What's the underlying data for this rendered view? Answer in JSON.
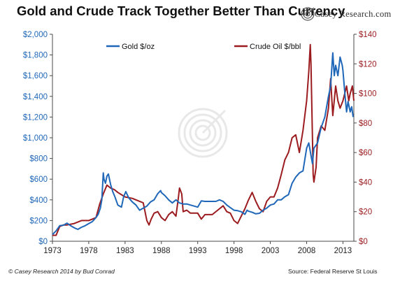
{
  "header": {
    "title": "Gold and Crude Track Together Better Than Currency",
    "brand": "Casey Research.com"
  },
  "footer": {
    "credit": "© Casey Research 2014 by Bud Conrad",
    "source": "Source: Federal Reserve St Louis"
  },
  "colors": {
    "gold": "#1f67b8",
    "oil": "#9b1b1f",
    "axis": "#4a4a4a",
    "watermark": "#d6d6d6"
  },
  "icons": {
    "watermark": "target-logo-icon",
    "brand": "target-logo-icon"
  },
  "chart_data": {
    "type": "line",
    "x_range": [
      1973,
      2014.5
    ],
    "x_ticks": [
      "1973",
      "1978",
      "1983",
      "1988",
      "1993",
      "1998",
      "2003",
      "2008",
      "2013"
    ],
    "y_left": {
      "range": [
        0,
        2000
      ],
      "ticks": [
        "$0",
        "$200",
        "$400",
        "$600",
        "$800",
        "$1,000",
        "$1,200",
        "$1,400",
        "$1,600",
        "$1,800",
        "$2,000"
      ]
    },
    "y_right": {
      "range": [
        0,
        140
      ],
      "ticks": [
        "$0",
        "$20",
        "$40",
        "$60",
        "$80",
        "$100",
        "$120",
        "$140"
      ]
    },
    "grid": false,
    "legend_position": "top",
    "series": [
      {
        "name": "Gold $/oz",
        "axis": "left",
        "points": [
          [
            1973,
            65
          ],
          [
            1973.5,
            100
          ],
          [
            1974,
            150
          ],
          [
            1974.5,
            155
          ],
          [
            1975,
            175
          ],
          [
            1975.5,
            150
          ],
          [
            1976,
            130
          ],
          [
            1976.5,
            115
          ],
          [
            1977,
            135
          ],
          [
            1977.5,
            150
          ],
          [
            1978,
            170
          ],
          [
            1978.5,
            190
          ],
          [
            1979,
            230
          ],
          [
            1979.3,
            260
          ],
          [
            1979.6,
            320
          ],
          [
            1979.8,
            400
          ],
          [
            1980.0,
            660
          ],
          [
            1980.1,
            600
          ],
          [
            1980.3,
            560
          ],
          [
            1980.5,
            630
          ],
          [
            1980.7,
            650
          ],
          [
            1981,
            550
          ],
          [
            1981.3,
            480
          ],
          [
            1981.6,
            430
          ],
          [
            1982,
            350
          ],
          [
            1982.5,
            330
          ],
          [
            1982.8,
            430
          ],
          [
            1983.1,
            480
          ],
          [
            1983.5,
            420
          ],
          [
            1984,
            380
          ],
          [
            1984.5,
            350
          ],
          [
            1985,
            300
          ],
          [
            1985.5,
            320
          ],
          [
            1986,
            340
          ],
          [
            1986.5,
            380
          ],
          [
            1987,
            400
          ],
          [
            1987.5,
            460
          ],
          [
            1987.9,
            490
          ],
          [
            1988,
            470
          ],
          [
            1988.5,
            440
          ],
          [
            1989,
            400
          ],
          [
            1989.5,
            370
          ],
          [
            1990,
            400
          ],
          [
            1990.5,
            370
          ],
          [
            1991,
            360
          ],
          [
            1991.5,
            360
          ],
          [
            1992,
            350
          ],
          [
            1992.5,
            340
          ],
          [
            1993,
            330
          ],
          [
            1993.5,
            390
          ],
          [
            1994,
            385
          ],
          [
            1994.5,
            385
          ],
          [
            1995,
            385
          ],
          [
            1995.5,
            385
          ],
          [
            1996,
            400
          ],
          [
            1996.5,
            385
          ],
          [
            1997,
            350
          ],
          [
            1997.5,
            325
          ],
          [
            1998,
            300
          ],
          [
            1998.5,
            295
          ],
          [
            1999,
            285
          ],
          [
            1999.5,
            260
          ],
          [
            1999.8,
            300
          ],
          [
            2000,
            290
          ],
          [
            2000.5,
            280
          ],
          [
            2001,
            265
          ],
          [
            2001.5,
            270
          ],
          [
            2002,
            300
          ],
          [
            2002.5,
            320
          ],
          [
            2003,
            350
          ],
          [
            2003.5,
            360
          ],
          [
            2004,
            400
          ],
          [
            2004.5,
            400
          ],
          [
            2005,
            430
          ],
          [
            2005.5,
            450
          ],
          [
            2006,
            560
          ],
          [
            2006.5,
            620
          ],
          [
            2007,
            660
          ],
          [
            2007.5,
            680
          ],
          [
            2008,
            900
          ],
          [
            2008.3,
            950
          ],
          [
            2008.6,
            830
          ],
          [
            2008.8,
            750
          ],
          [
            2009,
            900
          ],
          [
            2009.5,
            950
          ],
          [
            2010,
            1100
          ],
          [
            2010.5,
            1200
          ],
          [
            2011,
            1400
          ],
          [
            2011.3,
            1500
          ],
          [
            2011.6,
            1820
          ],
          [
            2011.8,
            1600
          ],
          [
            2012,
            1700
          ],
          [
            2012.3,
            1600
          ],
          [
            2012.6,
            1780
          ],
          [
            2012.9,
            1700
          ],
          [
            2013,
            1650
          ],
          [
            2013.3,
            1400
          ],
          [
            2013.5,
            1250
          ],
          [
            2013.7,
            1350
          ],
          [
            2014,
            1250
          ],
          [
            2014.2,
            1300
          ],
          [
            2014.4,
            1200
          ]
        ]
      },
      {
        "name": "Crude Oil $/bbl",
        "axis": "right",
        "points": [
          [
            1973,
            4
          ],
          [
            1973.5,
            4
          ],
          [
            1974,
            10
          ],
          [
            1974.5,
            11
          ],
          [
            1975,
            11
          ],
          [
            1976,
            12
          ],
          [
            1977,
            14
          ],
          [
            1978,
            14
          ],
          [
            1979,
            16
          ],
          [
            1979.5,
            25
          ],
          [
            1980,
            32
          ],
          [
            1980.5,
            38
          ],
          [
            1981,
            36
          ],
          [
            1981.5,
            35
          ],
          [
            1982,
            33
          ],
          [
            1983,
            30
          ],
          [
            1984,
            29
          ],
          [
            1985,
            27
          ],
          [
            1985.5,
            26
          ],
          [
            1986,
            14
          ],
          [
            1986.3,
            11
          ],
          [
            1986.6,
            15
          ],
          [
            1987,
            19
          ],
          [
            1987.5,
            20
          ],
          [
            1988,
            16
          ],
          [
            1988.5,
            14
          ],
          [
            1989,
            18
          ],
          [
            1989.5,
            20
          ],
          [
            1990,
            17
          ],
          [
            1990.3,
            28
          ],
          [
            1990.5,
            36
          ],
          [
            1990.8,
            32
          ],
          [
            1991,
            20
          ],
          [
            1991.5,
            21
          ],
          [
            1992,
            19
          ],
          [
            1993,
            19
          ],
          [
            1993.5,
            15
          ],
          [
            1994,
            18
          ],
          [
            1995,
            18
          ],
          [
            1996,
            22
          ],
          [
            1996.5,
            24
          ],
          [
            1997,
            20
          ],
          [
            1997.5,
            19
          ],
          [
            1998,
            14
          ],
          [
            1998.5,
            12
          ],
          [
            1999,
            17
          ],
          [
            1999.5,
            22
          ],
          [
            2000,
            28
          ],
          [
            2000.5,
            33
          ],
          [
            2001,
            27
          ],
          [
            2001.5,
            22
          ],
          [
            2002,
            20
          ],
          [
            2002.5,
            27
          ],
          [
            2003,
            30
          ],
          [
            2003.5,
            30
          ],
          [
            2004,
            36
          ],
          [
            2004.5,
            45
          ],
          [
            2005,
            55
          ],
          [
            2005.5,
            60
          ],
          [
            2006,
            70
          ],
          [
            2006.5,
            72
          ],
          [
            2007,
            60
          ],
          [
            2007.5,
            75
          ],
          [
            2008,
            95
          ],
          [
            2008.3,
            115
          ],
          [
            2008.5,
            133
          ],
          [
            2008.6,
            120
          ],
          [
            2008.8,
            70
          ],
          [
            2008.9,
            45
          ],
          [
            2009,
            40
          ],
          [
            2009.3,
            50
          ],
          [
            2009.5,
            70
          ],
          [
            2010,
            78
          ],
          [
            2010.5,
            75
          ],
          [
            2011,
            90
          ],
          [
            2011.3,
            110
          ],
          [
            2011.6,
            85
          ],
          [
            2012,
            105
          ],
          [
            2012.3,
            95
          ],
          [
            2012.6,
            90
          ],
          [
            2013,
            95
          ],
          [
            2013.5,
            105
          ],
          [
            2013.8,
            95
          ],
          [
            2014,
            100
          ],
          [
            2014.3,
            105
          ],
          [
            2014.5,
            95
          ]
        ]
      }
    ]
  }
}
